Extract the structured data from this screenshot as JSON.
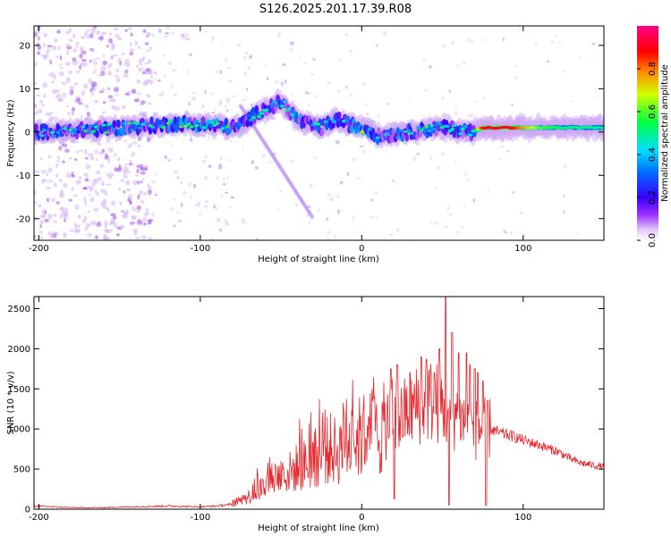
{
  "title": "S126.2025.201.17.39.R08",
  "chart_data": [
    {
      "type": "heatmap",
      "title": "S126.2025.201.17.39.R08",
      "xlabel": "Height of straight line (km)",
      "ylabel": "Frequency (Hz)",
      "xlim": [
        -203,
        150
      ],
      "ylim": [
        -25,
        24.5
      ],
      "x_ticks": [
        "-200",
        "-100",
        "0",
        "100"
      ],
      "x_tick_values": [
        -200,
        -100,
        0,
        100
      ],
      "y_ticks": [
        "-20",
        "-10",
        "0",
        "10",
        "20"
      ],
      "y_tick_values": [
        -20,
        -10,
        0,
        10,
        20
      ],
      "colorbar": {
        "label": "Normalized spectral amplitude",
        "range": [
          0,
          1
        ],
        "ticks": [
          "0.0",
          "0.2",
          "0.4",
          "0.6",
          "0.8"
        ],
        "tick_values": [
          0.0,
          0.2,
          0.4,
          0.6,
          0.8
        ],
        "colormap": [
          "#ffffff",
          "#d8b8f8",
          "#8a2be2",
          "#3a00ff",
          "#0060ff",
          "#00d8ff",
          "#00ff60",
          "#ffff00",
          "#ff8800",
          "#ff0000",
          "#ff0080"
        ]
      },
      "ridge": {
        "x": [
          -203,
          -190,
          -170,
          -150,
          -130,
          -110,
          -90,
          -78,
          -70,
          -62,
          -55,
          -50,
          -45,
          -40,
          -35,
          -30,
          -25,
          -20,
          -15,
          -10,
          -5,
          0,
          5,
          10,
          20,
          30,
          40,
          50,
          60,
          68,
          75,
          90,
          110,
          130,
          150
        ],
        "freq": [
          0,
          0,
          0.5,
          1,
          1.5,
          2,
          1.5,
          1,
          3,
          5,
          6,
          7,
          5,
          3,
          2,
          1.5,
          1,
          2,
          3,
          2,
          1.5,
          1,
          0.5,
          -1,
          -0.5,
          0,
          0.5,
          1,
          0.5,
          0,
          1,
          1,
          1,
          1,
          1
        ],
        "amplitude": [
          0.25,
          0.3,
          0.35,
          0.35,
          0.35,
          0.4,
          0.45,
          0.3,
          0.3,
          0.35,
          0.35,
          0.3,
          0.35,
          0.35,
          0.3,
          0.35,
          0.35,
          0.4,
          0.35,
          0.4,
          0.4,
          0.55,
          0.35,
          0.3,
          0.3,
          0.35,
          0.35,
          0.35,
          0.3,
          0.3,
          0.9,
          0.95,
          0.6,
          0.5,
          0.5
        ]
      }
    },
    {
      "type": "line",
      "xlabel": "Height of straight line (km)",
      "ylabel": "SNR (10 * v/v)",
      "xlim": [
        -203,
        150
      ],
      "ylim": [
        0,
        2650
      ],
      "x_ticks": [
        "-200",
        "-100",
        "0",
        "100"
      ],
      "x_tick_values": [
        -200,
        -100,
        0,
        100
      ],
      "y_ticks": [
        "0",
        "500",
        "1000",
        "1500",
        "2000",
        "2500"
      ],
      "y_tick_values": [
        0,
        500,
        1000,
        1500,
        2000,
        2500
      ],
      "series_color": "#e8262b",
      "x": [
        -203,
        -180,
        -160,
        -140,
        -120,
        -100,
        -90,
        -80,
        -75,
        -70,
        -65,
        -60,
        -55,
        -50,
        -45,
        -40,
        -35,
        -30,
        -25,
        -20,
        -15,
        -10,
        -5,
        0,
        5,
        10,
        15,
        18,
        20,
        22,
        25,
        30,
        35,
        40,
        45,
        50,
        52,
        55,
        58,
        60,
        65,
        70,
        75,
        78,
        80,
        85,
        90,
        95,
        100,
        105,
        110,
        115,
        120,
        125,
        130,
        135,
        140,
        145,
        150
      ],
      "values": [
        40,
        20,
        20,
        30,
        40,
        30,
        40,
        60,
        110,
        160,
        220,
        300,
        380,
        430,
        450,
        520,
        560,
        600,
        680,
        760,
        720,
        780,
        850,
        900,
        980,
        950,
        1000,
        1150,
        1200,
        1050,
        1150,
        1250,
        1300,
        1350,
        1350,
        1300,
        1250,
        1150,
        1200,
        1150,
        1050,
        1000,
        1000,
        1000,
        1000,
        950,
        930,
        900,
        860,
        830,
        800,
        760,
        730,
        680,
        620,
        580,
        560,
        540,
        530
      ],
      "spikes": [
        {
          "x": 18,
          "y": 1750
        },
        {
          "x": 20,
          "y": 130
        },
        {
          "x": 22,
          "y": 1800
        },
        {
          "x": 30,
          "y": 1700
        },
        {
          "x": 37,
          "y": 1900
        },
        {
          "x": 40,
          "y": 1870
        },
        {
          "x": 45,
          "y": 1700
        },
        {
          "x": 48,
          "y": 2000
        },
        {
          "x": 52,
          "y": 2650
        },
        {
          "x": 54,
          "y": 50
        },
        {
          "x": 56,
          "y": 2200
        },
        {
          "x": 60,
          "y": 1950
        },
        {
          "x": 65,
          "y": 1950
        },
        {
          "x": 67,
          "y": 1800
        },
        {
          "x": 70,
          "y": 1750
        },
        {
          "x": 72,
          "y": 1700
        },
        {
          "x": 75,
          "y": 1600
        },
        {
          "x": 77,
          "y": 50
        },
        {
          "x": 78,
          "y": 1350
        }
      ]
    }
  ]
}
